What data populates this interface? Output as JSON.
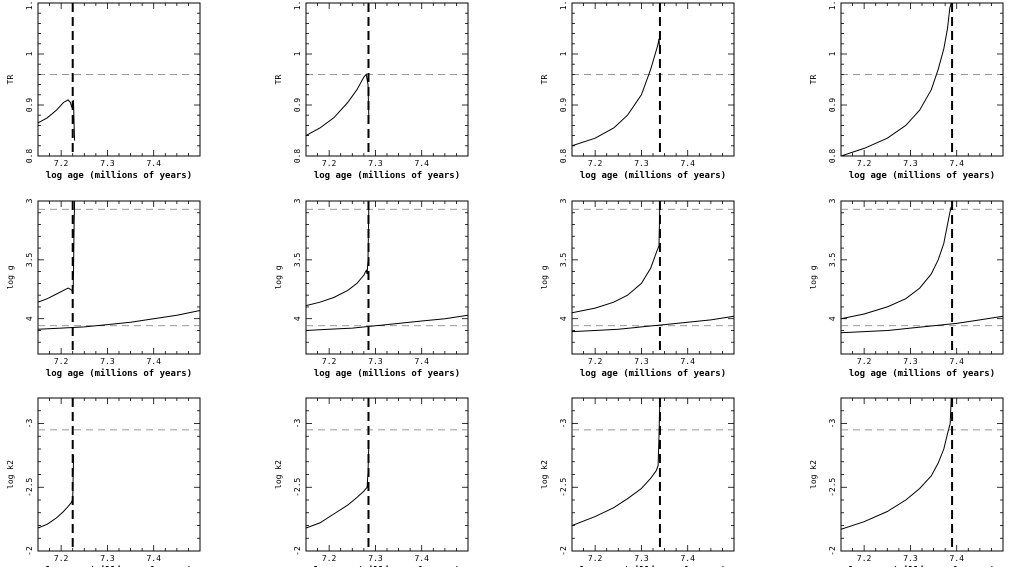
{
  "xlabel": "log age (millions of years)",
  "xticks": [
    7.2,
    7.3,
    7.4
  ],
  "row_labels": [
    "TR",
    "log g",
    "log k2"
  ],
  "chart_data": [
    {
      "type": "line",
      "row": 0,
      "col": 0,
      "ylabel": "TR",
      "xlim": [
        7.15,
        7.5
      ],
      "ylim": [
        0.8,
        1.1
      ],
      "yticks": [
        0.8,
        0.9,
        1,
        1.1
      ],
      "hlines": [
        0.96
      ],
      "vline": 7.225,
      "series": [
        {
          "x": [
            7.15,
            7.17,
            7.19,
            7.205,
            7.215,
            7.22,
            7.223,
            7.224,
            7.226,
            7.227,
            7.228,
            7.229
          ],
          "y": [
            0.865,
            0.875,
            0.89,
            0.905,
            0.91,
            0.905,
            0.895,
            0.9,
            0.91,
            0.9,
            0.86,
            0.83
          ]
        }
      ]
    },
    {
      "type": "line",
      "row": 0,
      "col": 1,
      "ylabel": "TR",
      "xlim": [
        7.15,
        7.5
      ],
      "ylim": [
        0.8,
        1.1
      ],
      "yticks": [
        0.8,
        0.9,
        1,
        1.1
      ],
      "hlines": [
        0.96
      ],
      "vline": 7.285,
      "series": [
        {
          "x": [
            7.15,
            7.18,
            7.21,
            7.24,
            7.26,
            7.275,
            7.28,
            7.282,
            7.284,
            7.286
          ],
          "y": [
            0.84,
            0.855,
            0.875,
            0.905,
            0.93,
            0.955,
            0.96,
            0.95,
            0.94,
            0.87
          ]
        }
      ]
    },
    {
      "type": "line",
      "row": 0,
      "col": 2,
      "ylabel": "TR",
      "xlim": [
        7.15,
        7.5
      ],
      "ylim": [
        0.8,
        1.1
      ],
      "yticks": [
        0.8,
        0.9,
        1,
        1.1
      ],
      "hlines": [
        0.96
      ],
      "vline": 7.34,
      "series": [
        {
          "x": [
            7.15,
            7.2,
            7.24,
            7.27,
            7.3,
            7.32,
            7.333,
            7.336,
            7.338,
            7.34
          ],
          "y": [
            0.82,
            0.835,
            0.855,
            0.88,
            0.92,
            0.97,
            1.01,
            1.02,
            1.03,
            1.0
          ]
        }
      ]
    },
    {
      "type": "line",
      "row": 0,
      "col": 3,
      "ylabel": "TR",
      "xlim": [
        7.15,
        7.5
      ],
      "ylim": [
        0.8,
        1.1
      ],
      "yticks": [
        0.8,
        0.9,
        1,
        1.1
      ],
      "hlines": [
        0.96
      ],
      "vline": 7.39,
      "series": [
        {
          "x": [
            7.15,
            7.2,
            7.25,
            7.29,
            7.32,
            7.345,
            7.36,
            7.372,
            7.38,
            7.385,
            7.388
          ],
          "y": [
            0.8,
            0.815,
            0.835,
            0.86,
            0.89,
            0.93,
            0.97,
            1.01,
            1.05,
            1.09,
            1.1
          ]
        }
      ]
    },
    {
      "type": "line",
      "row": 1,
      "col": 0,
      "ylabel": "log g",
      "xlim": [
        7.15,
        7.5
      ],
      "ylim": [
        4.3,
        3.0
      ],
      "yticks": [
        3,
        3.5,
        4
      ],
      "hlines": [
        3.07,
        4.06
      ],
      "vline": 7.225,
      "series": [
        {
          "x": [
            7.15,
            7.17,
            7.19,
            7.205,
            7.215,
            7.22,
            7.223,
            7.224,
            7.226,
            7.227,
            7.228,
            7.229
          ],
          "y": [
            3.86,
            3.83,
            3.79,
            3.76,
            3.74,
            3.75,
            3.76,
            3.78,
            3.73,
            3.55,
            3.2,
            3.0
          ]
        },
        {
          "x": [
            7.15,
            7.2,
            7.25,
            7.3,
            7.35,
            7.4,
            7.45,
            7.5
          ],
          "y": [
            4.09,
            4.08,
            4.07,
            4.05,
            4.03,
            4.0,
            3.97,
            3.93
          ]
        }
      ]
    },
    {
      "type": "line",
      "row": 1,
      "col": 1,
      "ylabel": "log g",
      "xlim": [
        7.15,
        7.5
      ],
      "ylim": [
        4.3,
        3.0
      ],
      "yticks": [
        3,
        3.5,
        4
      ],
      "hlines": [
        3.07,
        4.06
      ],
      "vline": 7.285,
      "series": [
        {
          "x": [
            7.15,
            7.18,
            7.21,
            7.24,
            7.26,
            7.275,
            7.28,
            7.282,
            7.284,
            7.286
          ],
          "y": [
            3.89,
            3.86,
            3.82,
            3.76,
            3.7,
            3.63,
            3.59,
            3.62,
            3.5,
            3.0
          ]
        },
        {
          "x": [
            7.15,
            7.2,
            7.25,
            7.3,
            7.35,
            7.4,
            7.45,
            7.5
          ],
          "y": [
            4.1,
            4.09,
            4.08,
            4.06,
            4.04,
            4.02,
            4.0,
            3.97
          ]
        }
      ]
    },
    {
      "type": "line",
      "row": 1,
      "col": 2,
      "ylabel": "log g",
      "xlim": [
        7.15,
        7.5
      ],
      "ylim": [
        4.3,
        3.0
      ],
      "yticks": [
        3,
        3.5,
        4
      ],
      "hlines": [
        3.07,
        4.06
      ],
      "vline": 7.34,
      "series": [
        {
          "x": [
            7.15,
            7.2,
            7.24,
            7.27,
            7.3,
            7.32,
            7.333,
            7.336,
            7.338,
            7.34
          ],
          "y": [
            3.95,
            3.91,
            3.86,
            3.8,
            3.7,
            3.57,
            3.43,
            3.4,
            3.38,
            3.0
          ]
        },
        {
          "x": [
            7.15,
            7.2,
            7.25,
            7.3,
            7.35,
            7.4,
            7.45,
            7.5
          ],
          "y": [
            4.11,
            4.1,
            4.09,
            4.07,
            4.05,
            4.03,
            4.01,
            3.98
          ]
        }
      ]
    },
    {
      "type": "line",
      "row": 1,
      "col": 3,
      "ylabel": "log g",
      "xlim": [
        7.15,
        7.5
      ],
      "ylim": [
        4.3,
        3.0
      ],
      "yticks": [
        3,
        3.5,
        4
      ],
      "hlines": [
        3.07,
        4.06
      ],
      "vline": 7.39,
      "series": [
        {
          "x": [
            7.15,
            7.2,
            7.25,
            7.29,
            7.32,
            7.345,
            7.36,
            7.372,
            7.38,
            7.385,
            7.388
          ],
          "y": [
            4.0,
            3.96,
            3.9,
            3.83,
            3.74,
            3.62,
            3.5,
            3.36,
            3.2,
            3.1,
            3.05
          ]
        },
        {
          "x": [
            7.15,
            7.2,
            7.25,
            7.3,
            7.35,
            7.4,
            7.45,
            7.5
          ],
          "y": [
            4.12,
            4.11,
            4.1,
            4.08,
            4.06,
            4.04,
            4.01,
            3.98
          ]
        }
      ]
    },
    {
      "type": "line",
      "row": 2,
      "col": 0,
      "ylabel": "log k2",
      "xlim": [
        7.15,
        7.5
      ],
      "ylim": [
        -2.0,
        -3.2
      ],
      "yticks": [
        -2,
        -2.5,
        -3
      ],
      "hlines": [
        -2.95
      ],
      "vline": 7.225,
      "series": [
        {
          "x": [
            7.15,
            7.17,
            7.19,
            7.205,
            7.215,
            7.222,
            7.224,
            7.225,
            7.226,
            7.227
          ],
          "y": [
            -2.18,
            -2.21,
            -2.26,
            -2.31,
            -2.35,
            -2.38,
            -2.4,
            -2.4,
            -2.6,
            -2.75
          ]
        }
      ]
    },
    {
      "type": "line",
      "row": 2,
      "col": 1,
      "ylabel": "log k2",
      "xlim": [
        7.15,
        7.5
      ],
      "ylim": [
        -2.0,
        -3.2
      ],
      "yticks": [
        -2,
        -2.5,
        -3
      ],
      "hlines": [
        -2.95
      ],
      "vline": 7.285,
      "series": [
        {
          "x": [
            7.15,
            7.18,
            7.21,
            7.24,
            7.26,
            7.275,
            7.282,
            7.284,
            7.286
          ],
          "y": [
            -2.18,
            -2.22,
            -2.29,
            -2.36,
            -2.42,
            -2.47,
            -2.5,
            -2.62,
            -2.85
          ]
        }
      ]
    },
    {
      "type": "line",
      "row": 2,
      "col": 2,
      "ylabel": "log k2",
      "xlim": [
        7.15,
        7.5
      ],
      "ylim": [
        -2.0,
        -3.2
      ],
      "yticks": [
        -2,
        -2.5,
        -3
      ],
      "hlines": [
        -2.95
      ],
      "vline": 7.34,
      "series": [
        {
          "x": [
            7.15,
            7.2,
            7.24,
            7.27,
            7.3,
            7.32,
            7.332,
            7.336,
            7.338,
            7.34
          ],
          "y": [
            -2.2,
            -2.27,
            -2.34,
            -2.41,
            -2.49,
            -2.57,
            -2.63,
            -2.67,
            -2.9,
            -3.2
          ]
        }
      ]
    },
    {
      "type": "line",
      "row": 2,
      "col": 3,
      "ylabel": "log k2",
      "xlim": [
        7.15,
        7.5
      ],
      "ylim": [
        -2.0,
        -3.2
      ],
      "yticks": [
        -2,
        -2.5,
        -3
      ],
      "hlines": [
        -2.95
      ],
      "vline": 7.39,
      "series": [
        {
          "x": [
            7.15,
            7.2,
            7.25,
            7.29,
            7.32,
            7.345,
            7.36,
            7.372,
            7.38,
            7.386,
            7.388
          ],
          "y": [
            -2.17,
            -2.23,
            -2.31,
            -2.4,
            -2.49,
            -2.59,
            -2.69,
            -2.8,
            -2.92,
            -3.0,
            -3.2
          ]
        }
      ]
    }
  ]
}
